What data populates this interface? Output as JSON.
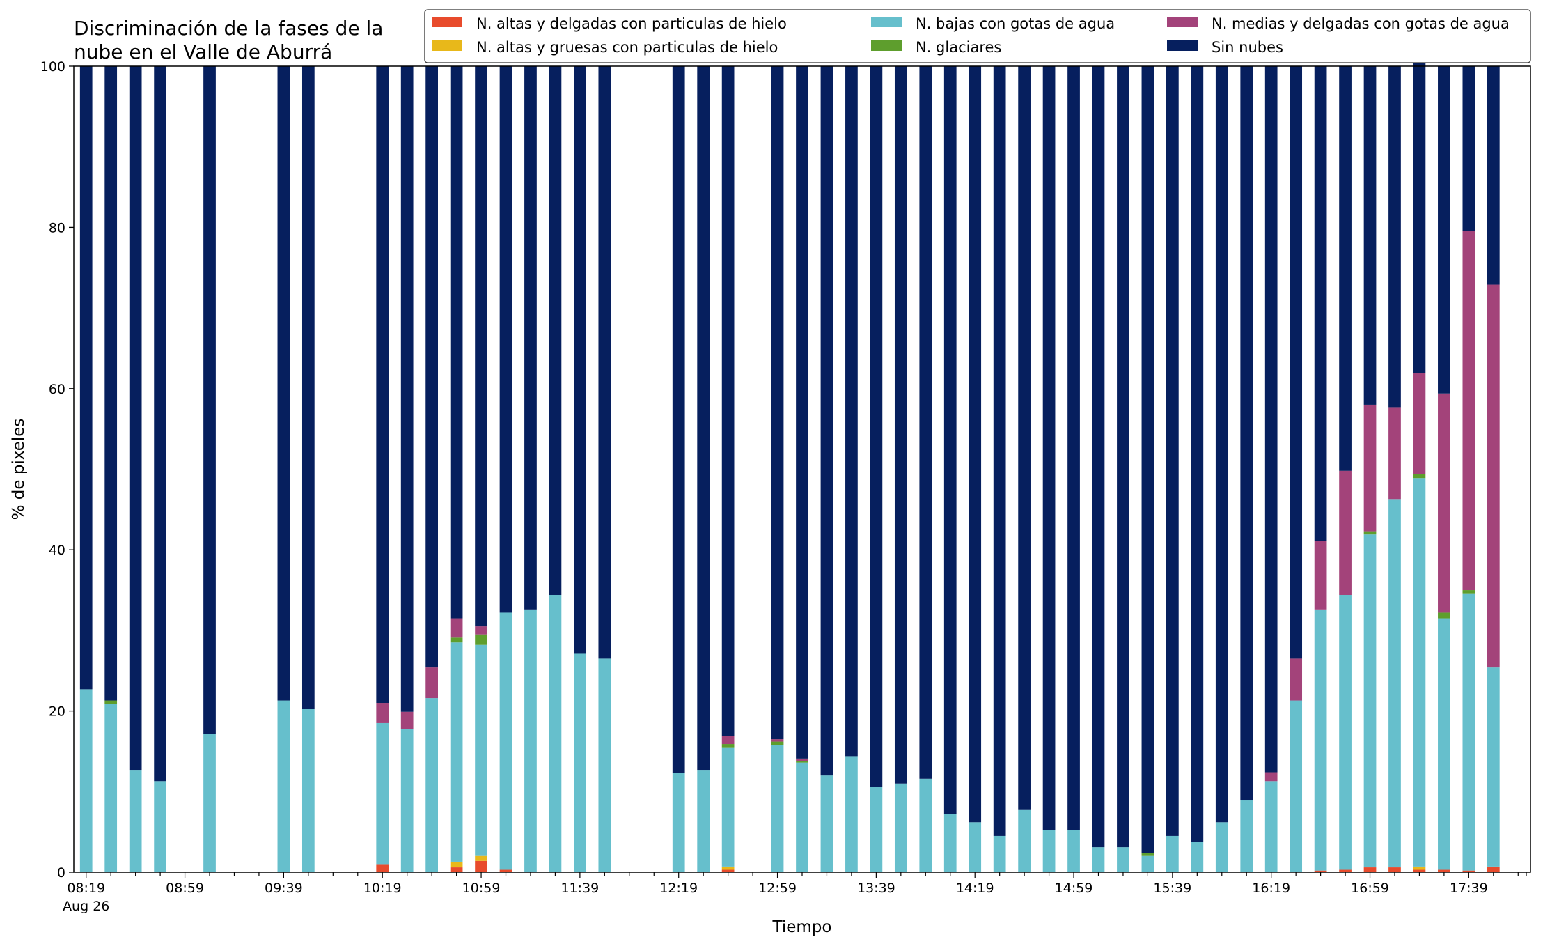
{
  "chart_data": {
    "type": "bar",
    "stacked": true,
    "title": [
      "Discriminación de la fases de la",
      "nube en el Valle de Aburrá"
    ],
    "xlabel": "Tiempo",
    "ylabel": "% de pixeles",
    "ylim": [
      0,
      100
    ],
    "yticks": [
      0,
      20,
      40,
      60,
      80,
      100
    ],
    "grid": false,
    "legend_position": "top-right",
    "x_start": "08:19",
    "x_step_minutes": 10,
    "x_count": 59,
    "xtick_labels": [
      "08:19",
      "08:59",
      "09:39",
      "10:19",
      "10:59",
      "11:39",
      "12:19",
      "12:59",
      "13:39",
      "14:19",
      "14:59",
      "15:39",
      "16:19",
      "16:59",
      "17:39"
    ],
    "date_label": "Aug 26",
    "categories": [
      "08:19",
      "08:29",
      "08:39",
      "08:49",
      "08:59",
      "09:09",
      "09:19",
      "09:29",
      "09:39",
      "09:49",
      "09:59",
      "10:09",
      "10:19",
      "10:29",
      "10:39",
      "10:49",
      "10:59",
      "11:09",
      "11:19",
      "11:29",
      "11:39",
      "11:49",
      "11:59",
      "12:09",
      "12:19",
      "12:29",
      "12:39",
      "12:49",
      "12:59",
      "13:09",
      "13:19",
      "13:29",
      "13:39",
      "13:49",
      "13:59",
      "14:09",
      "14:19",
      "14:29",
      "14:39",
      "14:49",
      "14:59",
      "15:09",
      "15:19",
      "15:29",
      "15:39",
      "15:49",
      "15:59",
      "16:09",
      "16:19",
      "16:29",
      "16:39",
      "16:49",
      "16:59",
      "17:09",
      "17:19",
      "17:29",
      "17:39",
      "17:49",
      "17:59"
    ],
    "series": [
      {
        "name": "N. altas y delgadas con particulas de hielo",
        "color": "#e84b2c",
        "values": [
          0,
          0,
          0,
          0,
          null,
          0,
          null,
          null,
          0,
          0,
          null,
          null,
          1.0,
          0,
          0,
          0.6,
          1.4,
          0.3,
          0,
          0,
          0,
          0,
          0,
          null,
          0,
          0,
          0.3,
          null,
          0,
          0,
          0,
          0,
          0,
          0,
          0,
          0,
          0,
          0,
          0,
          0,
          0,
          0,
          0,
          0,
          0,
          0,
          0,
          0,
          0,
          0,
          0.2,
          0.3,
          0.6,
          0.6,
          0.3,
          0.3,
          0.2,
          0.7,
          null
        ]
      },
      {
        "name": "N. altas y gruesas con particulas de hielo",
        "color": "#e8b81a",
        "values": [
          0,
          0,
          0,
          0,
          null,
          0,
          null,
          null,
          0,
          0,
          null,
          null,
          0,
          0,
          0,
          0.7,
          0.7,
          0,
          0,
          0,
          0,
          0,
          0,
          null,
          0,
          0,
          0.4,
          null,
          0,
          0,
          0,
          0,
          0,
          0,
          0,
          0,
          0,
          0,
          0,
          0,
          0,
          0,
          0,
          0,
          0,
          0,
          0,
          0,
          0,
          0,
          0,
          0,
          0,
          0,
          0.4,
          0,
          0,
          0,
          null
        ]
      },
      {
        "name": "N. bajas con gotas de agua",
        "color": "#66bfcc",
        "values": [
          22.7,
          20.9,
          12.7,
          11.3,
          null,
          17.2,
          null,
          null,
          21.3,
          20.3,
          null,
          null,
          17.5,
          17.8,
          21.6,
          27.2,
          26.1,
          31.9,
          32.6,
          34.4,
          27.1,
          26.5,
          0,
          null,
          12.3,
          12.7,
          14.8,
          null,
          15.8,
          13.6,
          12.0,
          14.4,
          10.6,
          11.0,
          11.6,
          7.2,
          6.2,
          4.5,
          7.8,
          5.2,
          5.2,
          3.1,
          3.1,
          2.1,
          4.5,
          3.8,
          6.2,
          8.9,
          11.3,
          21.3,
          32.4,
          34.1,
          41.3,
          45.7,
          48.2,
          31.2,
          34.4,
          24.7,
          null
        ]
      },
      {
        "name": "N. glaciares",
        "color": "#5e9e2d",
        "values": [
          0,
          0.4,
          0,
          0,
          null,
          0,
          null,
          null,
          0,
          0,
          null,
          null,
          0,
          0,
          0,
          0.6,
          1.3,
          0,
          0,
          0,
          0,
          0,
          0,
          null,
          0,
          0,
          0.4,
          null,
          0.4,
          0.2,
          0,
          0,
          0,
          0,
          0,
          0,
          0,
          0,
          0,
          0,
          0,
          0,
          0,
          0.3,
          0,
          0,
          0,
          0,
          0,
          0,
          0,
          0,
          0.4,
          0,
          0.5,
          0.7,
          0.4,
          0,
          null
        ]
      },
      {
        "name": "N. medias y delgadas con gotas de agua",
        "color": "#a3437a",
        "values": [
          0,
          0,
          0,
          0,
          null,
          0,
          null,
          null,
          0,
          0,
          null,
          null,
          2.5,
          2.1,
          3.8,
          2.4,
          1.0,
          0,
          0,
          0,
          0,
          0,
          0,
          null,
          0,
          0,
          1.0,
          null,
          0.3,
          0.3,
          0,
          0,
          0,
          0,
          0,
          0,
          0,
          0,
          0,
          0,
          0,
          0,
          0,
          0,
          0,
          0,
          0,
          0,
          1.1,
          5.2,
          8.5,
          15.4,
          15.7,
          11.4,
          12.5,
          27.2,
          44.6,
          47.5,
          null
        ]
      },
      {
        "name": "Sin nubes",
        "color": "#061f5e",
        "values": [
          77.3,
          78.7,
          87.3,
          88.7,
          null,
          82.8,
          null,
          null,
          78.7,
          79.7,
          null,
          null,
          79.0,
          80.1,
          74.6,
          68.5,
          69.5,
          67.8,
          67.4,
          65.6,
          72.9,
          73.5,
          0,
          null,
          87.7,
          87.3,
          83.1,
          null,
          83.5,
          85.9,
          88.0,
          85.6,
          89.4,
          89.0,
          88.4,
          92.8,
          93.8,
          95.5,
          92.2,
          94.8,
          94.8,
          96.9,
          96.9,
          97.6,
          95.5,
          96.2,
          93.8,
          91.1,
          87.6,
          73.5,
          58.9,
          50.2,
          42.0,
          42.3,
          38.6,
          40.6,
          20.4,
          27.1,
          null
        ]
      }
    ]
  }
}
